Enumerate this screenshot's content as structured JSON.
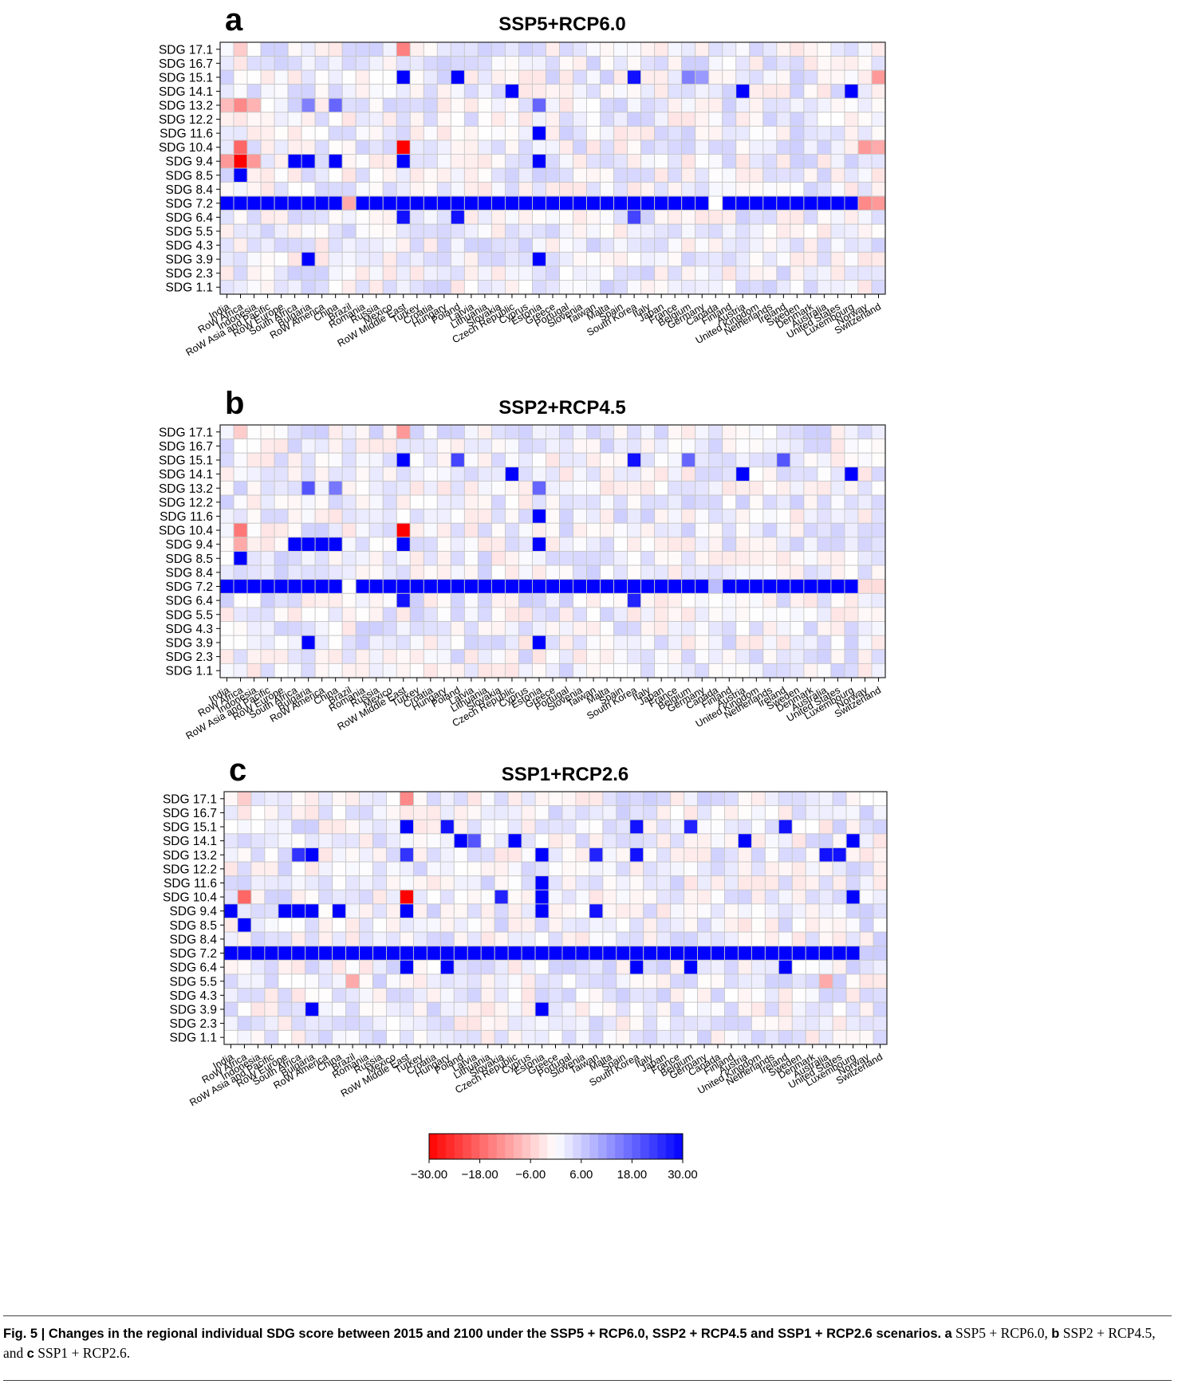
{
  "figure": {
    "caption_lead": "Fig. 5 | Changes in the regional individual SDG score between 2015 and 2100 under the SSP5 + RCP6.0, SSP2 + RCP4.5 and SSP1 + RCP2.6 scenarios.",
    "caption_p1_label": "a",
    "caption_p1_text": " SSP5 + RCP6.0,",
    "caption_p2_label": "b",
    "caption_p2_text": " SSP2 + RCP4.5, and ",
    "caption_p3_label": "c",
    "caption_p3_text": " SSP1 + RCP2.6."
  },
  "colorbar": {
    "ticks": [
      "−30.00",
      "−18.00",
      "−6.00",
      "6.00",
      "18.00",
      "30.00"
    ],
    "min": -30,
    "max": 30,
    "low_color": "#ff0000",
    "mid_color": "#ffffff",
    "high_color": "#0000ff"
  },
  "chart_data": [
    {
      "type": "heatmap",
      "panel": "a",
      "title": "SSP5+RCP6.0",
      "rows": [
        "SDG 17.1",
        "SDG 16.7",
        "SDG 15.1",
        "SDG 14.1",
        "SDG 13.2",
        "SDG 12.2",
        "SDG 11.6",
        "SDG 10.4",
        "SDG 9.4",
        "SDG 8.5",
        "SDG 8.4",
        "SDG 7.2",
        "SDG 6.4",
        "SDG 5.5",
        "SDG 4.3",
        "SDG 3.9",
        "SDG 2.3",
        "SDG 1.1"
      ],
      "columns": [
        "India",
        "RoW Africa",
        "Indonesia",
        "RoW Asia and Pacific",
        "RoW Europe",
        "South Africa",
        "Bulgaria",
        "RoW America",
        "China",
        "Brazil",
        "Romania",
        "Russia",
        "Mexico",
        "RoW Middle East",
        "Turkey",
        "Croatia",
        "Hungary",
        "Poland",
        "Latvia",
        "Lithuania",
        "Slovakia",
        "Czech Republic",
        "Cyprus",
        "Estonia",
        "Greece",
        "Portugal",
        "Slovenia",
        "Taiwan",
        "Malta",
        "Spain",
        "South Korea",
        "Italy",
        "Japan",
        "France",
        "Belgium",
        "Germany",
        "Canada",
        "Finland",
        "Austria",
        "United Kingdom",
        "Netherlands",
        "Ireland",
        "Sweden",
        "Denmark",
        "Australia",
        "United States",
        "Luxembourg",
        "Norway",
        "Switzerland"
      ],
      "highlights": [
        {
          "row": "SDG 17.1",
          "col": "RoW Africa",
          "value": -6
        },
        {
          "row": "SDG 17.1",
          "col": "RoW Middle East",
          "value": -15
        },
        {
          "row": "SDG 15.1",
          "col": "RoW Middle East",
          "value": 30
        },
        {
          "row": "SDG 15.1",
          "col": "Poland",
          "value": 30
        },
        {
          "row": "SDG 15.1",
          "col": "South Korea",
          "value": 28
        },
        {
          "row": "SDG 15.1",
          "col": "Belgium",
          "value": 15
        },
        {
          "row": "SDG 15.1",
          "col": "Germany",
          "value": 12
        },
        {
          "row": "SDG 15.1",
          "col": "Switzerland",
          "value": -12
        },
        {
          "row": "SDG 14.1",
          "col": "Czech Republic",
          "value": 30
        },
        {
          "row": "SDG 14.1",
          "col": "Austria",
          "value": 30
        },
        {
          "row": "SDG 14.1",
          "col": "Luxembourg",
          "value": 30
        },
        {
          "row": "SDG 13.2",
          "col": "India",
          "value": -8
        },
        {
          "row": "SDG 13.2",
          "col": "RoW Africa",
          "value": -14
        },
        {
          "row": "SDG 13.2",
          "col": "Indonesia",
          "value": -9
        },
        {
          "row": "SDG 13.2",
          "col": "Bulgaria",
          "value": 15
        },
        {
          "row": "SDG 13.2",
          "col": "China",
          "value": 18
        },
        {
          "row": "SDG 13.2",
          "col": "Estonia",
          "value": 18
        },
        {
          "row": "SDG 11.6",
          "col": "Estonia",
          "value": 30
        },
        {
          "row": "SDG 10.4",
          "col": "RoW Africa",
          "value": -18
        },
        {
          "row": "SDG 10.4",
          "col": "RoW Middle East",
          "value": -30
        },
        {
          "row": "SDG 10.4",
          "col": "Norway",
          "value": -12
        },
        {
          "row": "SDG 10.4",
          "col": "Switzerland",
          "value": -10
        },
        {
          "row": "SDG 9.4",
          "col": "India",
          "value": -12
        },
        {
          "row": "SDG 9.4",
          "col": "RoW Africa",
          "value": -30
        },
        {
          "row": "SDG 9.4",
          "col": "Indonesia",
          "value": -12
        },
        {
          "row": "SDG 9.4",
          "col": "South Africa",
          "value": 30
        },
        {
          "row": "SDG 9.4",
          "col": "Bulgaria",
          "value": 30
        },
        {
          "row": "SDG 9.4",
          "col": "China",
          "value": 30
        },
        {
          "row": "SDG 9.4",
          "col": "RoW Middle East",
          "value": 30
        },
        {
          "row": "SDG 9.4",
          "col": "Estonia",
          "value": 30
        },
        {
          "row": "SDG 8.5",
          "col": "RoW Africa",
          "value": 30
        },
        {
          "row": "SDG 7.2",
          "col": "Brazil",
          "value": -10
        },
        {
          "row": "SDG 7.2",
          "col": "Canada",
          "value": 0
        },
        {
          "row": "SDG 7.2",
          "col": "Norway",
          "value": -14
        },
        {
          "row": "SDG 7.2",
          "col": "Switzerland",
          "value": -12
        },
        {
          "row": "SDG 6.4",
          "col": "RoW Middle East",
          "value": 28
        },
        {
          "row": "SDG 6.4",
          "col": "Poland",
          "value": 28
        },
        {
          "row": "SDG 6.4",
          "col": "South Korea",
          "value": 22
        },
        {
          "row": "SDG 3.9",
          "col": "Bulgaria",
          "value": 30
        },
        {
          "row": "SDG 3.9",
          "col": "Estonia",
          "value": 30
        }
      ]
    },
    {
      "type": "heatmap",
      "panel": "b",
      "title": "SSP2+RCP4.5",
      "rows": [
        "SDG 17.1",
        "SDG 16.7",
        "SDG 15.1",
        "SDG 14.1",
        "SDG 13.2",
        "SDG 12.2",
        "SDG 11.6",
        "SDG 10.4",
        "SDG 9.4",
        "SDG 8.5",
        "SDG 8.4",
        "SDG 7.2",
        "SDG 6.4",
        "SDG 5.5",
        "SDG 4.3",
        "SDG 3.9",
        "SDG 2.3",
        "SDG 1.1"
      ],
      "columns": [
        "India",
        "RoW Africa",
        "Indonesia",
        "RoW Asia and Pacific",
        "RoW Europe",
        "South Africa",
        "Bulgaria",
        "RoW America",
        "China",
        "Brazil",
        "Romania",
        "Russia",
        "Mexico",
        "RoW Middle East",
        "Turkey",
        "Croatia",
        "Hungary",
        "Poland",
        "Latvia",
        "Lithuania",
        "Slovakia",
        "Czech Republic",
        "Cyprus",
        "Estonia",
        "Greece",
        "Portugal",
        "Slovenia",
        "Taiwan",
        "Malta",
        "Spain",
        "South Korea",
        "Italy",
        "Japan",
        "France",
        "Belgium",
        "Germany",
        "Canada",
        "Finland",
        "Austria",
        "United Kingdom",
        "Netherlands",
        "Ireland",
        "Sweden",
        "Denmark",
        "Australia",
        "United States",
        "Luxembourg",
        "Norway",
        "Switzerland"
      ],
      "highlights": [
        {
          "row": "SDG 17.1",
          "col": "RoW Africa",
          "value": -6
        },
        {
          "row": "SDG 17.1",
          "col": "RoW Middle East",
          "value": -12
        },
        {
          "row": "SDG 15.1",
          "col": "RoW Middle East",
          "value": 30
        },
        {
          "row": "SDG 15.1",
          "col": "Poland",
          "value": 22
        },
        {
          "row": "SDG 15.1",
          "col": "South Korea",
          "value": 28
        },
        {
          "row": "SDG 15.1",
          "col": "Belgium",
          "value": 18
        },
        {
          "row": "SDG 15.1",
          "col": "Ireland",
          "value": 20
        },
        {
          "row": "SDG 14.1",
          "col": "Czech Republic",
          "value": 30
        },
        {
          "row": "SDG 14.1",
          "col": "Austria",
          "value": 30
        },
        {
          "row": "SDG 14.1",
          "col": "Luxembourg",
          "value": 30
        },
        {
          "row": "SDG 13.2",
          "col": "Bulgaria",
          "value": 20
        },
        {
          "row": "SDG 13.2",
          "col": "China",
          "value": 16
        },
        {
          "row": "SDG 13.2",
          "col": "Estonia",
          "value": 18
        },
        {
          "row": "SDG 11.6",
          "col": "Estonia",
          "value": 30
        },
        {
          "row": "SDG 10.4",
          "col": "RoW Africa",
          "value": -16
        },
        {
          "row": "SDG 10.4",
          "col": "RoW Middle East",
          "value": -30
        },
        {
          "row": "SDG 9.4",
          "col": "RoW Africa",
          "value": -10
        },
        {
          "row": "SDG 9.4",
          "col": "South Africa",
          "value": 30
        },
        {
          "row": "SDG 9.4",
          "col": "Bulgaria",
          "value": 30
        },
        {
          "row": "SDG 9.4",
          "col": "RoW America",
          "value": 30
        },
        {
          "row": "SDG 9.4",
          "col": "China",
          "value": 30
        },
        {
          "row": "SDG 9.4",
          "col": "RoW Middle East",
          "value": 30
        },
        {
          "row": "SDG 9.4",
          "col": "Estonia",
          "value": 30
        },
        {
          "row": "SDG 8.5",
          "col": "RoW Africa",
          "value": 30
        },
        {
          "row": "SDG 7.2",
          "col": "Brazil",
          "value": 0
        },
        {
          "row": "SDG 7.2",
          "col": "Canada",
          "value": 8
        },
        {
          "row": "SDG 7.2",
          "col": "Norway",
          "value": -4
        },
        {
          "row": "SDG 7.2",
          "col": "Switzerland",
          "value": -4
        },
        {
          "row": "SDG 6.4",
          "col": "RoW Middle East",
          "value": 28
        },
        {
          "row": "SDG 6.4",
          "col": "South Korea",
          "value": 26
        },
        {
          "row": "SDG 3.9",
          "col": "Bulgaria",
          "value": 30
        },
        {
          "row": "SDG 3.9",
          "col": "Estonia",
          "value": 30
        }
      ]
    },
    {
      "type": "heatmap",
      "panel": "c",
      "title": "SSP1+RCP2.6",
      "rows": [
        "SDG 17.1",
        "SDG 16.7",
        "SDG 15.1",
        "SDG 14.1",
        "SDG 13.2",
        "SDG 12.2",
        "SDG 11.6",
        "SDG 10.4",
        "SDG 9.4",
        "SDG 8.5",
        "SDG 8.4",
        "SDG 7.2",
        "SDG 6.4",
        "SDG 5.5",
        "SDG 4.3",
        "SDG 3.9",
        "SDG 2.3",
        "SDG 1.1"
      ],
      "columns": [
        "India",
        "RoW Africa",
        "Indonesia",
        "RoW Asia and Pacific",
        "RoW Europe",
        "South Africa",
        "Bulgaria",
        "RoW America",
        "China",
        "Brazil",
        "Romania",
        "Russia",
        "Mexico",
        "RoW Middle East",
        "Turkey",
        "Croatia",
        "Hungary",
        "Poland",
        "Latvia",
        "Lithuania",
        "Slovakia",
        "Czech Republic",
        "Cyprus",
        "Estonia",
        "Greece",
        "Portugal",
        "Slovenia",
        "Taiwan",
        "Malta",
        "Spain",
        "South Korea",
        "Italy",
        "Japan",
        "France",
        "Belgium",
        "Germany",
        "Canada",
        "Finland",
        "Austria",
        "United Kingdom",
        "Netherlands",
        "Ireland",
        "Sweden",
        "Denmark",
        "Australia",
        "United States",
        "Luxembourg",
        "Norway",
        "Switzerland"
      ],
      "highlights": [
        {
          "row": "SDG 17.1",
          "col": "RoW Africa",
          "value": -6
        },
        {
          "row": "SDG 17.1",
          "col": "RoW Middle East",
          "value": -14
        },
        {
          "row": "SDG 15.1",
          "col": "RoW Middle East",
          "value": 30
        },
        {
          "row": "SDG 15.1",
          "col": "Hungary",
          "value": 28
        },
        {
          "row": "SDG 15.1",
          "col": "South Korea",
          "value": 28
        },
        {
          "row": "SDG 15.1",
          "col": "Belgium",
          "value": 26
        },
        {
          "row": "SDG 15.1",
          "col": "Ireland",
          "value": 28
        },
        {
          "row": "SDG 14.1",
          "col": "Poland",
          "value": 30
        },
        {
          "row": "SDG 14.1",
          "col": "Latvia",
          "value": 20
        },
        {
          "row": "SDG 14.1",
          "col": "Czech Republic",
          "value": 30
        },
        {
          "row": "SDG 14.1",
          "col": "Austria",
          "value": 30
        },
        {
          "row": "SDG 14.1",
          "col": "Luxembourg",
          "value": 30
        },
        {
          "row": "SDG 13.2",
          "col": "South Africa",
          "value": 24
        },
        {
          "row": "SDG 13.2",
          "col": "Bulgaria",
          "value": 30
        },
        {
          "row": "SDG 13.2",
          "col": "RoW Middle East",
          "value": 24
        },
        {
          "row": "SDG 13.2",
          "col": "Estonia",
          "value": 30
        },
        {
          "row": "SDG 13.2",
          "col": "Taiwan",
          "value": 26
        },
        {
          "row": "SDG 13.2",
          "col": "South Korea",
          "value": 28
        },
        {
          "row": "SDG 13.2",
          "col": "Australia",
          "value": 28
        },
        {
          "row": "SDG 13.2",
          "col": "United States",
          "value": 28
        },
        {
          "row": "SDG 11.6",
          "col": "Estonia",
          "value": 30
        },
        {
          "row": "SDG 10.4",
          "col": "RoW Africa",
          "value": -18
        },
        {
          "row": "SDG 10.4",
          "col": "RoW Middle East",
          "value": -30
        },
        {
          "row": "SDG 10.4",
          "col": "Slovakia",
          "value": 26
        },
        {
          "row": "SDG 10.4",
          "col": "Estonia",
          "value": 30
        },
        {
          "row": "SDG 10.4",
          "col": "Luxembourg",
          "value": 30
        },
        {
          "row": "SDG 9.4",
          "col": "India",
          "value": 30
        },
        {
          "row": "SDG 9.4",
          "col": "RoW Europe",
          "value": 30
        },
        {
          "row": "SDG 9.4",
          "col": "South Africa",
          "value": 30
        },
        {
          "row": "SDG 9.4",
          "col": "Bulgaria",
          "value": 30
        },
        {
          "row": "SDG 9.4",
          "col": "China",
          "value": 30
        },
        {
          "row": "SDG 9.4",
          "col": "RoW Middle East",
          "value": 30
        },
        {
          "row": "SDG 9.4",
          "col": "Estonia",
          "value": 30
        },
        {
          "row": "SDG 9.4",
          "col": "Taiwan",
          "value": 28
        },
        {
          "row": "SDG 8.5",
          "col": "RoW Africa",
          "value": 30
        },
        {
          "row": "SDG 7.2",
          "col": "Norway",
          "value": 6
        },
        {
          "row": "SDG 7.2",
          "col": "Switzerland",
          "value": 6
        },
        {
          "row": "SDG 6.4",
          "col": "RoW Middle East",
          "value": 30
        },
        {
          "row": "SDG 6.4",
          "col": "Hungary",
          "value": 30
        },
        {
          "row": "SDG 6.4",
          "col": "South Korea",
          "value": 30
        },
        {
          "row": "SDG 6.4",
          "col": "Belgium",
          "value": 30
        },
        {
          "row": "SDG 6.4",
          "col": "Ireland",
          "value": 30
        },
        {
          "row": "SDG 5.5",
          "col": "Brazil",
          "value": -10
        },
        {
          "row": "SDG 5.5",
          "col": "Australia",
          "value": -10
        },
        {
          "row": "SDG 3.9",
          "col": "Bulgaria",
          "value": 30
        },
        {
          "row": "SDG 3.9",
          "col": "Estonia",
          "value": 30
        }
      ]
    }
  ]
}
